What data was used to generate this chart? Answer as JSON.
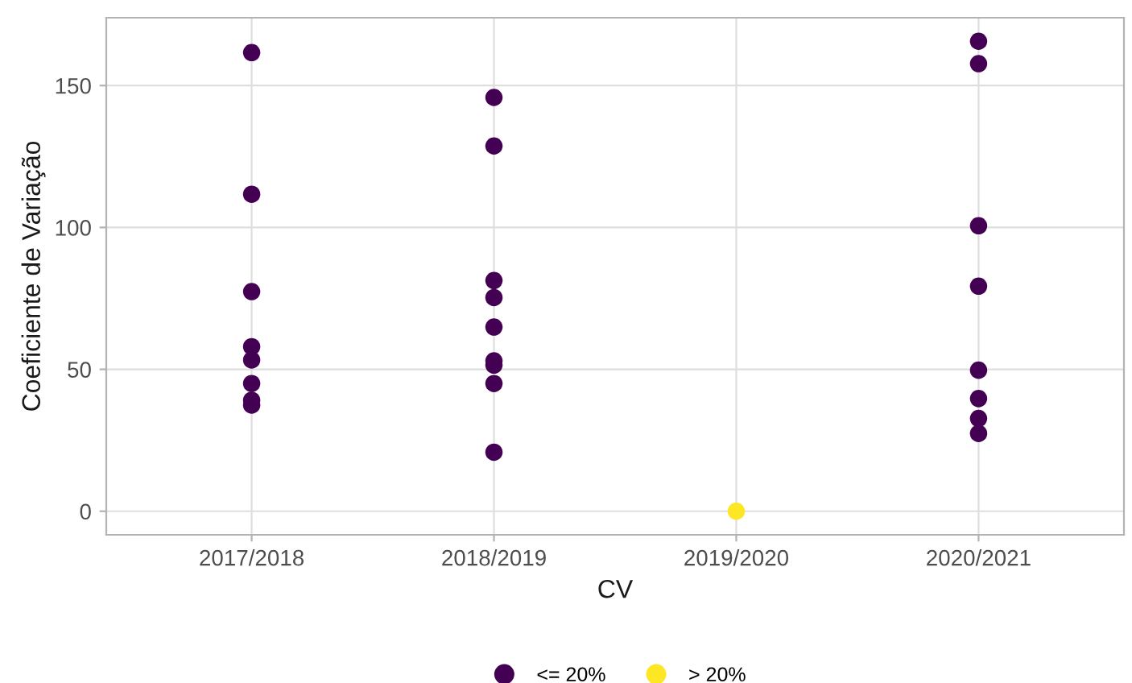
{
  "chart_data": {
    "type": "scatter",
    "xlabel": "CV",
    "ylabel": "Coeficiente de Variação",
    "categories": [
      "2017/2018",
      "2018/2019",
      "2019/2020",
      "2020/2021"
    ],
    "series": [
      {
        "name": "<= 20%",
        "color": "#440154",
        "x": [
          "2017/2018",
          "2017/2018",
          "2017/2018",
          "2017/2018",
          "2017/2018",
          "2017/2018",
          "2017/2018",
          "2017/2018",
          "2018/2019",
          "2018/2019",
          "2018/2019",
          "2018/2019",
          "2018/2019",
          "2018/2019",
          "2018/2019",
          "2018/2019",
          "2018/2019",
          "2020/2021",
          "2020/2021",
          "2020/2021",
          "2020/2021",
          "2020/2021",
          "2020/2021",
          "2020/2021",
          "2020/2021"
        ],
        "values": [
          161.6,
          111.7,
          77.4,
          58,
          53.3,
          45,
          39.1,
          37.4,
          145.8,
          128.7,
          81.3,
          75.3,
          64.9,
          53,
          51.5,
          45,
          20.8,
          165.6,
          157.7,
          100.6,
          79.3,
          49.7,
          39.7,
          32.7,
          27.4
        ]
      },
      {
        "name": "> 20%",
        "color": "#fde725",
        "x": [
          "2019/2020"
        ],
        "values": [
          0
        ]
      }
    ],
    "ylim": [
      -8.3,
      173.9
    ],
    "yticks": [
      0,
      50,
      100,
      150
    ],
    "grid": true,
    "legend": "bottom",
    "marker": "circle"
  }
}
